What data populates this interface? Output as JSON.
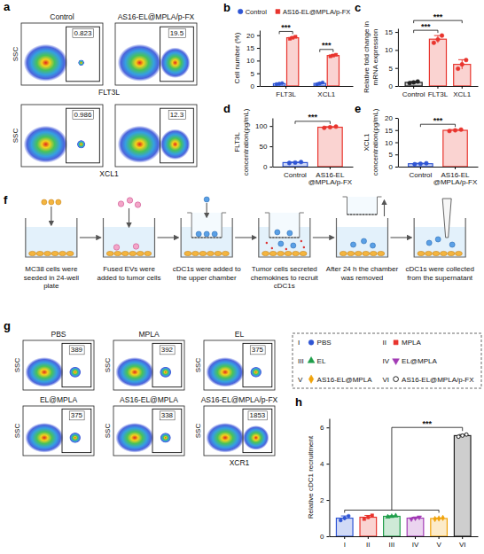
{
  "chart_data": [
    {
      "type": "flow",
      "panel": "a",
      "columns": [
        "Control",
        "AS16-EL@MPLA/p-FX"
      ],
      "rows": [
        {
          "x_label": "FLT3L",
          "y_label": "SSC",
          "values": [
            0.823,
            19.5
          ]
        },
        {
          "x_label": "XCL1",
          "y_label": "SSC",
          "values": [
            0.986,
            12.3
          ]
        }
      ],
      "tick_labels": false
    },
    {
      "type": "bar",
      "panel": "b",
      "y_label": "Cell number (%)",
      "categories": [
        "FLT3L",
        "XCL1"
      ],
      "series": [
        {
          "name": "Control",
          "color": "#2f55d4",
          "marker": "circle",
          "values": [
            0.9,
            1.0
          ],
          "errors": [
            0.2,
            0.35
          ],
          "points": [
            [
              0.7,
              0.9,
              1.1
            ],
            [
              0.6,
              1.0,
              1.35
            ]
          ]
        },
        {
          "name": "AS16-EL@MPLA/p-FX",
          "color": "#e8352e",
          "marker": "square",
          "values": [
            19.0,
            12.0
          ],
          "errors": [
            0.4,
            0.3
          ],
          "points": [
            [
              18.6,
              19.0,
              19.4
            ],
            [
              11.7,
              12.0,
              12.3
            ]
          ]
        }
      ],
      "ylim": [
        0,
        22
      ],
      "yticks": [
        0,
        5,
        10,
        15,
        20
      ],
      "legend": "top",
      "annotations": [
        {
          "text": "***",
          "category": 0
        },
        {
          "text": "***",
          "category": 1
        }
      ]
    },
    {
      "type": "bar",
      "panel": "c",
      "y_label": "Relative fold change in mRNA expression",
      "categories": [
        "Control",
        "FLT3L",
        "XCL1"
      ],
      "values": [
        1.0,
        13.0,
        6.0
      ],
      "errors": [
        0.25,
        1.0,
        1.3
      ],
      "points": [
        [
          0.8,
          1.0,
          1.25
        ],
        [
          12.0,
          12.9,
          14.0
        ],
        [
          4.8,
          6.0,
          7.2
        ]
      ],
      "colors": [
        "#222222",
        "#e8352e",
        "#e8352e"
      ],
      "marker": "circle",
      "ylim": [
        0,
        16
      ],
      "yticks": [
        0,
        5,
        10,
        15
      ],
      "annotations": [
        {
          "text": "***",
          "pair": [
            0,
            1
          ]
        },
        {
          "text": "***",
          "pair": [
            0,
            2
          ]
        }
      ]
    },
    {
      "type": "bar",
      "panel": "d",
      "y_label": "FLT3L concentration(pg/mL)",
      "categories": [
        "Control",
        "AS16-EL@MPLA/p-FX"
      ],
      "values": [
        10,
        97
      ],
      "errors": [
        1.2,
        1.5
      ],
      "points": [
        [
          9,
          10,
          11.2
        ],
        [
          95.5,
          97,
          98.5
        ]
      ],
      "colors": [
        "#2f55d4",
        "#e8352e"
      ],
      "marker": "circle",
      "ylim": [
        0,
        120
      ],
      "yticks": [
        0,
        50,
        100
      ],
      "annotations": [
        {
          "text": "***",
          "pair": [
            0,
            1
          ]
        }
      ]
    },
    {
      "type": "bar",
      "panel": "e",
      "y_label": "XCL1 concentration(pg/mL)",
      "categories": [
        "Control",
        "AS16-EL@MPLA/p-FX"
      ],
      "values": [
        1.2,
        14.9
      ],
      "errors": [
        0.2,
        0.3
      ],
      "points": [
        [
          1.0,
          1.2,
          1.4
        ],
        [
          14.6,
          14.9,
          15.2
        ]
      ],
      "colors": [
        "#2f55d4",
        "#e8352e"
      ],
      "marker": "circle",
      "ylim": [
        0,
        20
      ],
      "yticks": [
        0,
        5,
        10,
        15,
        20
      ],
      "annotations": [
        {
          "text": "***",
          "pair": [
            0,
            1
          ]
        }
      ]
    },
    {
      "type": "flow",
      "panel": "g",
      "x_label": "XCR1",
      "y_label": "SSC",
      "plots": [
        {
          "title": "PBS",
          "value": 389
        },
        {
          "title": "MPLA",
          "value": 392
        },
        {
          "title": "EL",
          "value": 375
        },
        {
          "title": "EL@MPLA",
          "value": 375
        },
        {
          "title": "AS16-EL@MPLA",
          "value": 338
        },
        {
          "title": "AS16-EL@MPLA/p-FX",
          "value": 1853
        }
      ],
      "tick_labels": false
    },
    {
      "type": "bar",
      "panel": "h",
      "y_label": "Relative cDC1 recruitment",
      "categories": [
        "I",
        "II",
        "III",
        "IV",
        "V",
        "VI"
      ],
      "stacked": true,
      "legend": "top",
      "series": [
        {
          "name": "PBS",
          "color": "#2f55d4",
          "marker": "circle",
          "values": [
            1.0,
            null,
            null,
            null,
            null,
            null
          ],
          "errors": [
            0.12,
            null,
            null,
            null,
            null,
            null
          ],
          "points": [
            [
              0.88,
              1.0,
              1.12
            ],
            null,
            null,
            null,
            null,
            null
          ]
        },
        {
          "name": "MPLA",
          "color": "#e8352e",
          "marker": "square",
          "values": [
            null,
            1.05,
            null,
            null,
            null,
            null
          ],
          "errors": [
            null,
            0.1,
            null,
            null,
            null,
            null
          ],
          "points": [
            null,
            [
              0.95,
              1.05,
              1.15
            ],
            null,
            null,
            null,
            null
          ]
        },
        {
          "name": "EL",
          "color": "#1f9e4a",
          "marker": "triangle",
          "values": [
            null,
            null,
            1.1,
            null,
            null,
            null
          ],
          "errors": [
            null,
            null,
            0.03,
            null,
            null,
            null
          ],
          "points": [
            null,
            null,
            [
              1.07,
              1.1,
              1.13
            ],
            null,
            null,
            null
          ]
        },
        {
          "name": "EL@MPLA",
          "color": "#a23bb5",
          "marker": "triangle-down",
          "values": [
            null,
            null,
            null,
            1.0,
            null,
            null
          ],
          "errors": [
            null,
            null,
            null,
            0.05,
            null,
            null
          ],
          "points": [
            null,
            null,
            null,
            [
              0.95,
              1.0,
              1.05
            ],
            null,
            null
          ]
        },
        {
          "name": "AS16-EL@MPLA",
          "color": "#f0a30a",
          "marker": "diamond",
          "values": [
            null,
            null,
            null,
            null,
            0.98,
            null
          ],
          "errors": [
            null,
            null,
            null,
            null,
            0.03,
            null
          ],
          "points": [
            null,
            null,
            null,
            null,
            [
              0.95,
              0.98,
              1.01
            ],
            null
          ]
        },
        {
          "name": "AS16-EL@MPLA/p-FX",
          "color": "#222222",
          "marker": "circle-open",
          "values": [
            null,
            null,
            null,
            null,
            null,
            5.55
          ],
          "errors": [
            null,
            null,
            null,
            null,
            null,
            0.06
          ],
          "points": [
            null,
            null,
            null,
            null,
            null,
            [
              5.49,
              5.55,
              5.61
            ]
          ]
        }
      ],
      "ylim": [
        0,
        6.5
      ],
      "yticks": [
        0,
        2,
        4,
        6
      ],
      "annotations": [
        {
          "text": "***",
          "span": [
            0,
            4
          ],
          "to": 5
        }
      ]
    }
  ],
  "diagram": {
    "panel": "f",
    "steps": [
      "MC38 cells were seeded in 24-well plate",
      "Fused EVs were added to tumor cells",
      "cDC1s were added to the upper chamber",
      "Tumor cells secreted chemokines to recruit cDC1s",
      "After 24 h the chamber was removed",
      "cDC1s were collected from the supernatant"
    ]
  }
}
